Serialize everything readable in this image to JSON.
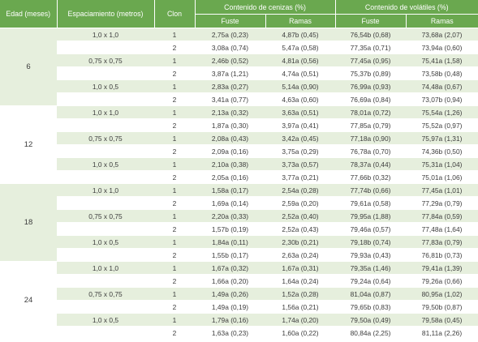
{
  "headers": {
    "edad": "Edad (meses)",
    "espaciamiento": "Espaciamiento (metros)",
    "clon": "Clon",
    "cenizas": "Contenido de cenizas (%)",
    "volatiles": "Contenido de volátiles (%)",
    "fuste": "Fuste",
    "ramas": "Ramas"
  },
  "colors": {
    "header_bg": "#6aa84f",
    "stripe_bg": "#e6efdd",
    "text": "#3c3c3c"
  },
  "groups": [
    {
      "edad": "6",
      "spacings": [
        {
          "label": "1,0 x 1,0",
          "rows": [
            {
              "clon": "1",
              "cen_fuste": "2,75a (0,23)",
              "cen_ramas": "4,87b (0,45)",
              "vol_fuste": "76,54b (0,68)",
              "vol_ramas": "73,68a (2,07)"
            },
            {
              "clon": "2",
              "cen_fuste": "3,08a (0,74)",
              "cen_ramas": "5,47a (0,58)",
              "vol_fuste": "77,35a (0,71)",
              "vol_ramas": "73,94a (0,60)"
            }
          ]
        },
        {
          "label": "0,75 x 0,75",
          "rows": [
            {
              "clon": "1",
              "cen_fuste": "2,46b (0,52)",
              "cen_ramas": "4,81a (0,56)",
              "vol_fuste": "77,45a (0,95)",
              "vol_ramas": "75,41a (1,58)"
            },
            {
              "clon": "2",
              "cen_fuste": "3,87a (1,21)",
              "cen_ramas": "4,74a (0,51)",
              "vol_fuste": "75,37b (0,89)",
              "vol_ramas": "73,58b (0,48)"
            }
          ]
        },
        {
          "label": "1,0 x 0,5",
          "rows": [
            {
              "clon": "1",
              "cen_fuste": "2,83a (0,27)",
              "cen_ramas": "5,14a (0,90)",
              "vol_fuste": "76,99a (0,93)",
              "vol_ramas": "74,48a (0,67)"
            },
            {
              "clon": "2",
              "cen_fuste": "3,41a (0,77)",
              "cen_ramas": "4,63a (0,60)",
              "vol_fuste": "76,69a (0,84)",
              "vol_ramas": "73,07b (0,94)"
            }
          ]
        }
      ]
    },
    {
      "edad": "12",
      "spacings": [
        {
          "label": "1,0 x 1,0",
          "rows": [
            {
              "clon": "1",
              "cen_fuste": "2,13a (0,32)",
              "cen_ramas": "3,63a (0,51)",
              "vol_fuste": "78,01a (0,72)",
              "vol_ramas": "75,54a (1,26)"
            },
            {
              "clon": "2",
              "cen_fuste": "1,87a (0,30)",
              "cen_ramas": "3,97a (0,41)",
              "vol_fuste": "77,85a (0,79)",
              "vol_ramas": "75,52a (0,97)"
            }
          ]
        },
        {
          "label": "0,75 x 0,75",
          "rows": [
            {
              "clon": "1",
              "cen_fuste": "2,08a (0,43)",
              "cen_ramas": "3,42a (0,45)",
              "vol_fuste": "77,18a (0,90)",
              "vol_ramas": "75,97a (1,31)"
            },
            {
              "clon": "2",
              "cen_fuste": "2,09a (0,16)",
              "cen_ramas": "3,75a (0,29)",
              "vol_fuste": "76,78a (0,70)",
              "vol_ramas": "74,36b (0,50)"
            }
          ]
        },
        {
          "label": "1,0 x 0,5",
          "rows": [
            {
              "clon": "1",
              "cen_fuste": "2,10a (0,38)",
              "cen_ramas": "3,73a (0,57)",
              "vol_fuste": "78,37a (0,44)",
              "vol_ramas": "75,31a (1,04)"
            },
            {
              "clon": "2",
              "cen_fuste": "2,05a (0,16)",
              "cen_ramas": "3,77a (0,21)",
              "vol_fuste": "77,66b (0,32)",
              "vol_ramas": "75,01a (1,06)"
            }
          ]
        }
      ]
    },
    {
      "edad": "18",
      "spacings": [
        {
          "label": "1,0 x 1,0",
          "rows": [
            {
              "clon": "1",
              "cen_fuste": "1,58a (0,17)",
              "cen_ramas": "2,54a (0,28)",
              "vol_fuste": "77,74b (0,66)",
              "vol_ramas": "77,45a (1,01)"
            },
            {
              "clon": "2",
              "cen_fuste": "1,69a (0,14)",
              "cen_ramas": "2,59a (0,20)",
              "vol_fuste": "79,61a (0,58)",
              "vol_ramas": "77,29a (0,79)"
            }
          ]
        },
        {
          "label": "0,75 x 0,75",
          "rows": [
            {
              "clon": "1",
              "cen_fuste": "2,20a (0,33)",
              "cen_ramas": "2,52a (0,40)",
              "vol_fuste": "79,95a (1,88)",
              "vol_ramas": "77,84a (0,59)"
            },
            {
              "clon": "2",
              "cen_fuste": "1,57b (0,19)",
              "cen_ramas": "2,52a (0,43)",
              "vol_fuste": "79,46a (0,57)",
              "vol_ramas": "77,48a (1,64)"
            }
          ]
        },
        {
          "label": "1,0 x 0,5",
          "rows": [
            {
              "clon": "1",
              "cen_fuste": "1,84a (0,11)",
              "cen_ramas": "2,30b (0,21)",
              "vol_fuste": "79,18b (0,74)",
              "vol_ramas": "77,83a (0,79)"
            },
            {
              "clon": "2",
              "cen_fuste": "1,55b (0,17)",
              "cen_ramas": "2,63a (0,24)",
              "vol_fuste": "79,93a (0,43)",
              "vol_ramas": "76,81b (0,73)"
            }
          ]
        }
      ]
    },
    {
      "edad": "24",
      "spacings": [
        {
          "label": "1,0 x 1,0",
          "rows": [
            {
              "clon": "1",
              "cen_fuste": "1,67a (0,32)",
              "cen_ramas": "1,67a (0,31)",
              "vol_fuste": "79,35a (1,46)",
              "vol_ramas": "79,41a (1,39)"
            },
            {
              "clon": "2",
              "cen_fuste": "1,66a (0,20)",
              "cen_ramas": "1,64a (0,24)",
              "vol_fuste": "79,24a (0,64)",
              "vol_ramas": "79,26a (0,66)"
            }
          ]
        },
        {
          "label": "0,75 x 0,75",
          "rows": [
            {
              "clon": "1",
              "cen_fuste": "1,49a (0,26)",
              "cen_ramas": "1,52a (0,28)",
              "vol_fuste": "81,04a (0,87)",
              "vol_ramas": "80,95a (1,02)"
            },
            {
              "clon": "2",
              "cen_fuste": "1,49a (0,19)",
              "cen_ramas": "1,56a (0,21)",
              "vol_fuste": "79,65b (0,83)",
              "vol_ramas": "79,50b (0,87)"
            }
          ]
        },
        {
          "label": "1,0 x 0,5",
          "rows": [
            {
              "clon": "1",
              "cen_fuste": "1,79a (0,16)",
              "cen_ramas": "1,74a (0,20)",
              "vol_fuste": "79,50a (0,49)",
              "vol_ramas": "79,58a (0,45)"
            },
            {
              "clon": "2",
              "cen_fuste": "1,63a (0,23)",
              "cen_ramas": "1,60a (0,22)",
              "vol_fuste": "80,84a (2,25)",
              "vol_ramas": "81,11a (2,26)"
            }
          ]
        }
      ]
    }
  ]
}
